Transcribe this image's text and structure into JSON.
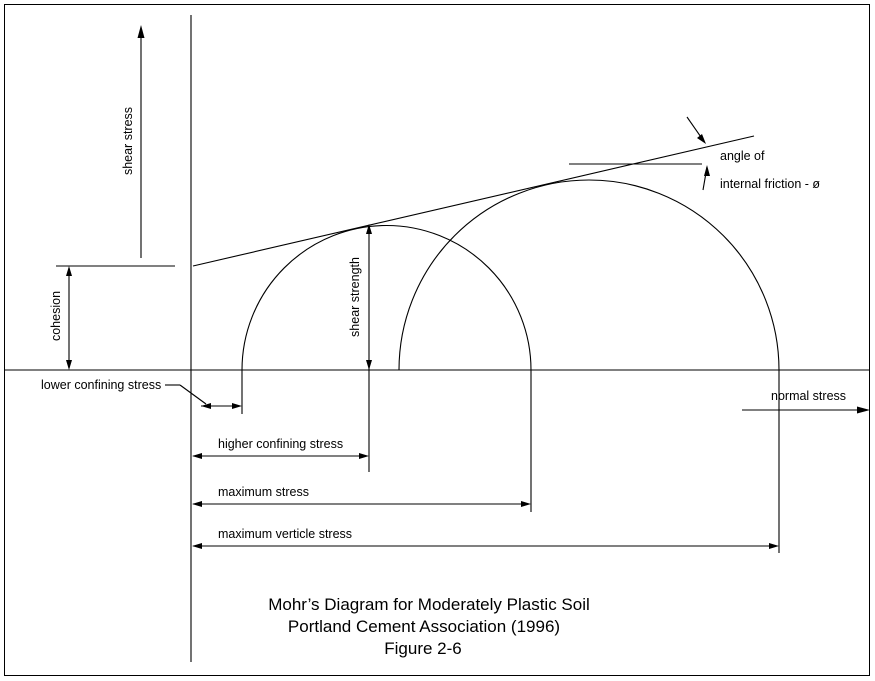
{
  "diagram": {
    "labels": {
      "shear_stress": "shear stress",
      "cohesion": "cohesion",
      "shear_strength": "shear strength",
      "angle_line1": "angle of",
      "angle_line2": "internal friction - ø",
      "lower_confining": "lower confining stress",
      "normal_stress": "normal stress",
      "higher_confining": "higher confining stress",
      "maximum_stress": "maximum stress",
      "maximum_verticle": "maximum verticle stress"
    },
    "caption": {
      "line1": "Mohr’s Diagram for Moderately Plastic Soil",
      "line2": "Portland Cement Association (1996)",
      "line3": "Figure 2-6"
    }
  }
}
